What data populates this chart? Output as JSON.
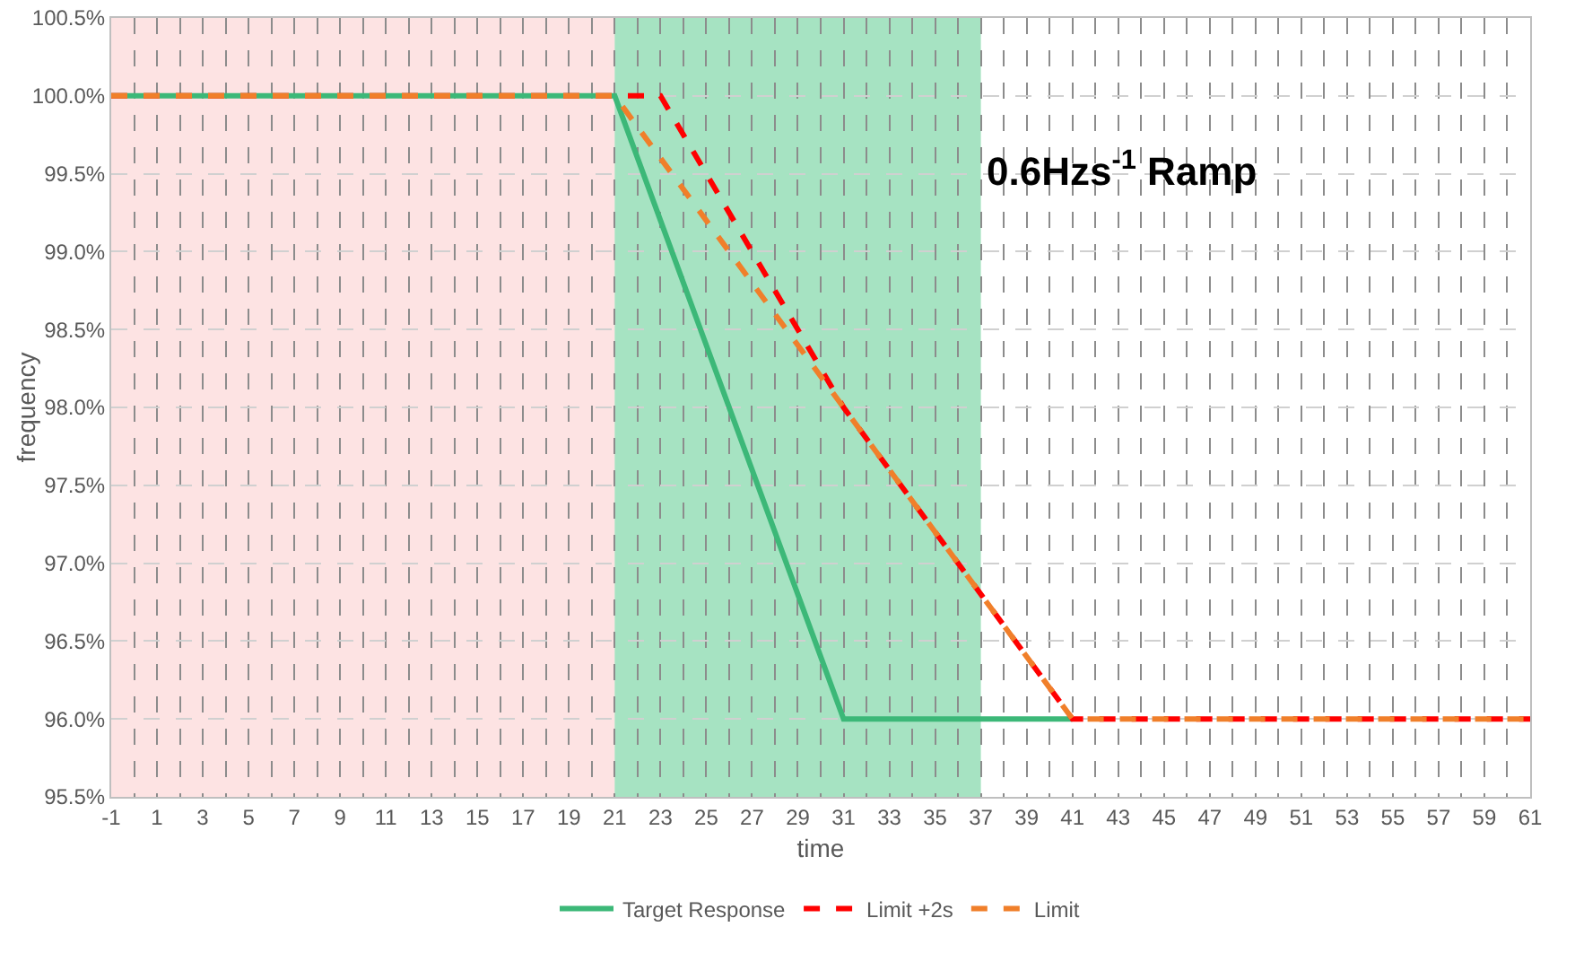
{
  "chart_data": {
    "type": "line",
    "xlabel": "time",
    "ylabel": "frequency",
    "annotations": [
      "0.6Hzs$^{-1}$ Ramp"
    ],
    "series": [
      {
        "name": "Target Response",
        "color": "#3cb878",
        "line_style": "solid",
        "x": [
          -1,
          21,
          31,
          41
        ],
        "values": [
          100,
          100,
          96,
          96
        ]
      },
      {
        "name": "Limit +2s",
        "color": "#ff0000",
        "line_style": "dashed",
        "x": [
          -1,
          23,
          31,
          41,
          61
        ],
        "values": [
          100,
          100,
          98,
          96,
          96
        ]
      },
      {
        "name": "Limit",
        "color": "#f07f2a",
        "line_style": "dashed",
        "x": [
          -1,
          21,
          31,
          41,
          61
        ],
        "values": [
          100,
          100,
          98,
          96,
          96
        ]
      }
    ],
    "bands": [
      {
        "axis": "x",
        "from": -1,
        "to": 21,
        "color": "#fde3e3"
      },
      {
        "axis": "x",
        "from": 21,
        "to": 37,
        "color": "#00b050"
      }
    ],
    "xlim": [
      -1,
      61
    ],
    "xticks": [
      -1,
      {
        "value": 0,
        "label": null
      },
      1,
      {
        "value": 2,
        "label": null
      },
      3,
      {
        "value": 4,
        "label": null
      },
      5,
      {
        "value": 6,
        "label": null
      },
      7,
      {
        "value": 8,
        "label": null
      },
      9,
      {
        "value": 10,
        "label": null
      },
      11,
      {
        "value": 12,
        "label": null
      },
      13,
      {
        "value": 14,
        "label": null
      },
      15,
      {
        "value": 16,
        "label": null
      },
      17,
      {
        "value": 18,
        "label": null
      },
      19,
      {
        "value": 20,
        "label": null
      },
      21,
      {
        "value": 22,
        "label": null
      },
      23,
      {
        "value": 24,
        "label": null
      },
      25,
      {
        "value": 26,
        "label": null
      },
      27,
      {
        "value": 28,
        "label": null
      },
      29,
      {
        "value": 30,
        "label": null
      },
      31,
      {
        "value": 32,
        "label": null
      },
      33,
      {
        "value": 34,
        "label": null
      },
      35,
      {
        "value": 36,
        "label": null
      },
      37,
      {
        "value": 38,
        "label": null
      },
      39,
      {
        "value": 40,
        "label": null
      },
      41,
      {
        "value": 42,
        "label": null
      },
      43,
      {
        "value": 44,
        "label": null
      },
      45,
      {
        "value": 46,
        "label": null
      },
      47,
      {
        "value": 48,
        "label": null
      },
      49,
      {
        "value": 50,
        "label": null
      },
      51,
      {
        "value": 52,
        "label": null
      },
      53,
      {
        "value": 54,
        "label": null
      },
      55,
      {
        "value": 56,
        "label": null
      },
      57,
      {
        "value": 58,
        "label": null
      },
      59,
      {
        "value": 60,
        "label": null
      },
      61
    ],
    "ylim": [
      95.5,
      100.5
    ],
    "yticks": [
      {
        "value": 95.5,
        "label": "95.5%"
      },
      {
        "value": 96,
        "label": "96.0%"
      },
      {
        "value": 96.5,
        "label": "96.5%"
      },
      {
        "value": 97,
        "label": "97.0%"
      },
      {
        "value": 97.5,
        "label": "97.5%"
      },
      {
        "value": 98,
        "label": "98.0%"
      },
      {
        "value": 98.5,
        "label": "98.5%"
      },
      {
        "value": 99,
        "label": "99.0%"
      },
      {
        "value": 99.5,
        "label": "99.5%"
      },
      {
        "value": 100,
        "label": "100.0%"
      },
      {
        "value": 100.5,
        "label": "100.5%"
      }
    ],
    "grid": true,
    "legend": "bottom",
    "marker": "none"
  }
}
